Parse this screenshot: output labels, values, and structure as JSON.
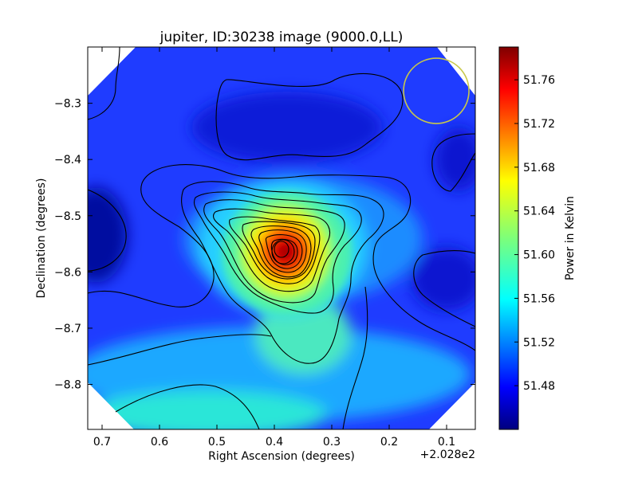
{
  "chart_data": {
    "type": "heatmap",
    "title": "jupiter, ID:30238 image (9000.0,LL)",
    "xlabel": "Right Ascension (degrees)",
    "ylabel": "Declination (degrees)",
    "x_offset_label": "+2.028e2",
    "colorbar_label": "Power in Kelvin",
    "colormap": "jet",
    "xlim": [
      0.725,
      0.05
    ],
    "ylim": [
      -8.88,
      -8.2
    ],
    "xticks": [
      0.7,
      0.6,
      0.5,
      0.4,
      0.3,
      0.2,
      0.1
    ],
    "xtick_labels": [
      "0.7",
      "0.6",
      "0.5",
      "0.4",
      "0.3",
      "0.2",
      "0.1"
    ],
    "yticks": [
      -8.3,
      -8.4,
      -8.5,
      -8.6,
      -8.7,
      -8.8
    ],
    "ytick_labels": [
      "−8.3",
      "−8.4",
      "−8.5",
      "−8.6",
      "−8.7",
      "−8.8"
    ],
    "clim": [
      51.44,
      51.79
    ],
    "colorbar_ticks": [
      51.48,
      51.52,
      51.56,
      51.6,
      51.64,
      51.68,
      51.72,
      51.76
    ],
    "colorbar_tick_labels": [
      "51.48",
      "51.52",
      "51.56",
      "51.60",
      "51.64",
      "51.68",
      "51.72",
      "51.76"
    ],
    "peak": {
      "x": 0.39,
      "y": -8.56,
      "value": 51.79
    },
    "beam_circle": {
      "x": 0.118,
      "y": -8.278,
      "color": "#c8c84a"
    },
    "contour_color": "#000000"
  }
}
